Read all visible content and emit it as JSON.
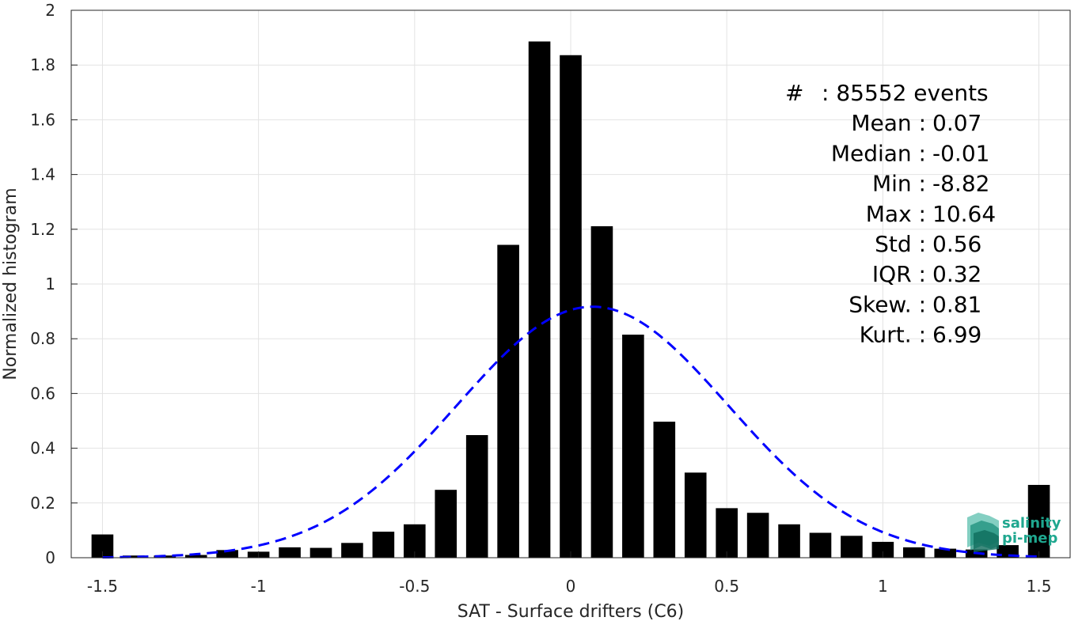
{
  "chart_data": {
    "type": "bar",
    "xlabel": "SAT - Surface drifters (C6)",
    "ylabel": "Normalized histogram",
    "xlim": [
      -1.6,
      1.6
    ],
    "ylim": [
      0,
      2
    ],
    "grid": true,
    "x_ticks": [
      "-1.5",
      "-1",
      "-0.5",
      "0",
      "0.5",
      "1",
      "1.5"
    ],
    "x_tick_values": [
      -1.5,
      -1,
      -0.5,
      0,
      0.5,
      1,
      1.5
    ],
    "y_ticks": [
      "0",
      "0.2",
      "0.4",
      "0.6",
      "0.8",
      "1",
      "1.2",
      "1.4",
      "1.6",
      "1.8",
      "2"
    ],
    "y_tick_values": [
      0,
      0.2,
      0.4,
      0.6,
      0.8,
      1,
      1.2,
      1.4,
      1.6,
      1.8,
      2
    ],
    "bar_width": 0.07,
    "x": [
      -1.5,
      -1.4,
      -1.3,
      -1.2,
      -1.1,
      -1.0,
      -0.9,
      -0.8,
      -0.7,
      -0.6,
      -0.5,
      -0.4,
      -0.3,
      -0.2,
      -0.1,
      0.0,
      0.1,
      0.2,
      0.3,
      0.4,
      0.5,
      0.6,
      0.7,
      0.8,
      0.9,
      1.0,
      1.1,
      1.2,
      1.3,
      1.4,
      1.5
    ],
    "values": [
      0.085,
      0.008,
      0.008,
      0.01,
      0.028,
      0.022,
      0.038,
      0.036,
      0.054,
      0.095,
      0.122,
      0.248,
      0.448,
      1.143,
      1.886,
      1.836,
      1.211,
      0.815,
      0.497,
      0.311,
      0.181,
      0.164,
      0.122,
      0.091,
      0.08,
      0.058,
      0.038,
      0.033,
      0.03,
      0.046,
      0.266
    ],
    "bar_color": "#000000",
    "fit_curve": {
      "style": "dashed",
      "color": "#0000ff",
      "mean": 0.07,
      "std": 0.435,
      "peak": 0.917,
      "x_range": [
        -1.5,
        1.5
      ]
    },
    "annotations": [
      {
        "label": "#",
        "sep": ":",
        "value": "85552 events"
      },
      {
        "label": "Mean",
        "sep": ":",
        "value": "0.07"
      },
      {
        "label": "Median",
        "sep": ":",
        "value": "-0.01"
      },
      {
        "label": "Min",
        "sep": ":",
        "value": "-8.82"
      },
      {
        "label": "Max",
        "sep": ":",
        "value": "10.64"
      },
      {
        "label": "Std",
        "sep": ":",
        "value": "0.56"
      },
      {
        "label": "IQR",
        "sep": ":",
        "value": "0.32"
      },
      {
        "label": "Skew.",
        "sep": ":",
        "value": "0.81"
      },
      {
        "label": "Kurt.",
        "sep": ":",
        "value": "6.99"
      }
    ]
  },
  "logo": {
    "line1": "salinity",
    "line2": "pi-mep",
    "color": "#1fa78f"
  }
}
